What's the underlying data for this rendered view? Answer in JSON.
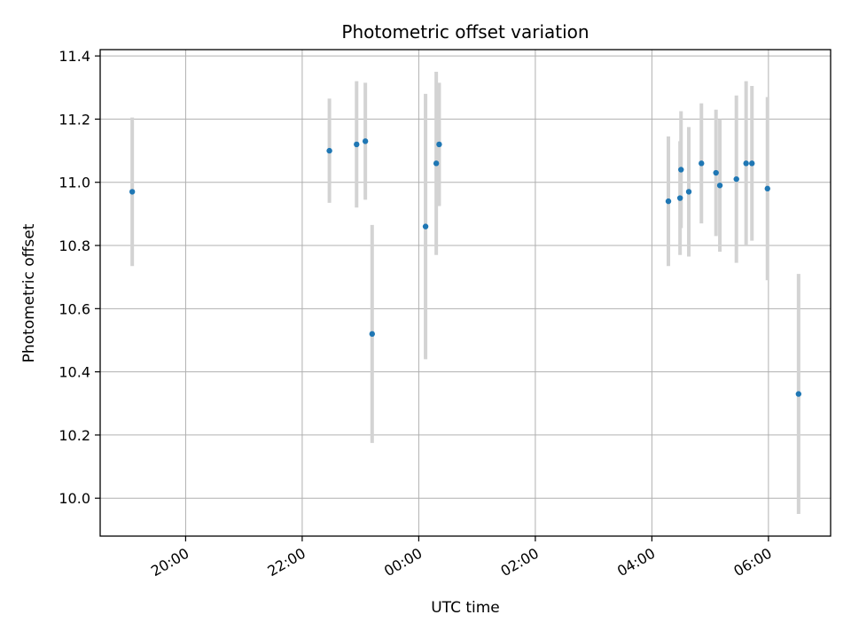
{
  "chart_data": {
    "type": "scatter",
    "title": "Photometric offset variation",
    "xlabel": "UTC time",
    "ylabel": "Photometric offset",
    "x_ticks": [
      "20:00",
      "22:00",
      "00:00",
      "02:00",
      "04:00",
      "06:00"
    ],
    "y_ticks": [
      "10.0",
      "10.2",
      "10.4",
      "10.6",
      "10.8",
      "11.0",
      "11.2",
      "11.4"
    ],
    "xlim": [
      "18:32",
      "07:04"
    ],
    "ylim": [
      9.88,
      11.42
    ],
    "grid": true,
    "marker_color": "#1f77b4",
    "errorbar_color": "#d3d3d3",
    "points": [
      {
        "time": "19:05",
        "y": 10.97,
        "err": 0.235
      },
      {
        "time": "22:28",
        "y": 11.1,
        "err": 0.165
      },
      {
        "time": "22:56",
        "y": 11.12,
        "err": 0.2
      },
      {
        "time": "23:05",
        "y": 11.13,
        "err": 0.185
      },
      {
        "time": "23:12",
        "y": 10.52,
        "err": 0.345
      },
      {
        "time": "00:07",
        "y": 10.86,
        "err": 0.42
      },
      {
        "time": "00:18",
        "y": 11.06,
        "err": 0.29
      },
      {
        "time": "00:21",
        "y": 11.12,
        "err": 0.195
      },
      {
        "time": "04:17",
        "y": 10.94,
        "err": 0.205
      },
      {
        "time": "04:29",
        "y": 10.95,
        "err": 0.18
      },
      {
        "time": "04:30",
        "y": 11.04,
        "err": 0.185
      },
      {
        "time": "04:38",
        "y": 10.97,
        "err": 0.205
      },
      {
        "time": "04:51",
        "y": 11.06,
        "err": 0.19
      },
      {
        "time": "05:06",
        "y": 11.03,
        "err": 0.2
      },
      {
        "time": "05:10",
        "y": 10.99,
        "err": 0.21
      },
      {
        "time": "05:27",
        "y": 11.01,
        "err": 0.265
      },
      {
        "time": "05:37",
        "y": 11.06,
        "err": 0.26
      },
      {
        "time": "05:43",
        "y": 11.06,
        "err": 0.245
      },
      {
        "time": "05:59",
        "y": 10.98,
        "err": 0.29
      },
      {
        "time": "06:31",
        "y": 10.33,
        "err": 0.38
      }
    ]
  }
}
